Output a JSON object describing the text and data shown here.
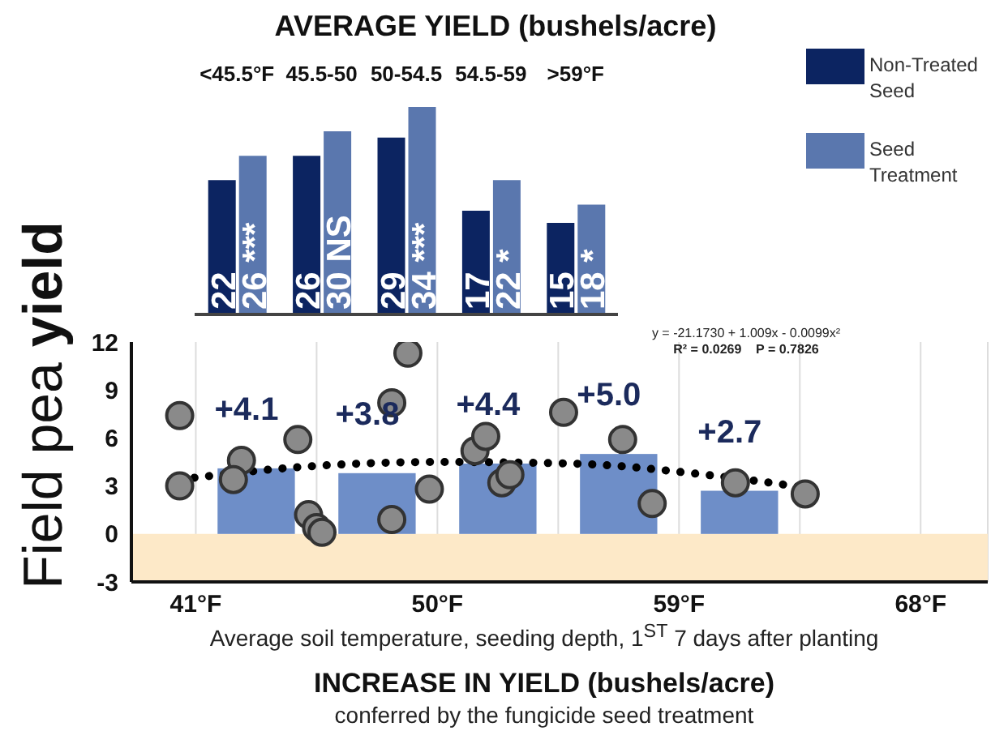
{
  "chart_data": [
    {
      "type": "bar",
      "title": "AVERAGE YIELD (bushels/acre)",
      "categories": [
        "<45.5°F",
        "45.5-50",
        "50-54.5",
        "54.5-59",
        ">59°F"
      ],
      "legend": "right",
      "series": [
        {
          "name": "Non-Treated Seed",
          "color": "#0c2461",
          "values": [
            22,
            26,
            29,
            17,
            15
          ],
          "value_labels": [
            "22",
            "26",
            "29",
            "17",
            "15"
          ]
        },
        {
          "name": "Seed Treatment",
          "color": "#5a77ae",
          "values": [
            26,
            30,
            34,
            22,
            18
          ],
          "value_labels": [
            "26 ***",
            "30 NS",
            "34 ***",
            "22 *",
            "18 *"
          ]
        }
      ]
    },
    {
      "type": "bar",
      "title": "INCREASE IN YIELD (bushels/acre)",
      "subtitle": "conferred by the fungicide seed treatment",
      "xlabel": "Average soil temperature, seeding depth, 1$^{ST}$ 7 days after planting",
      "ylabel": "Field pea yield",
      "xlim": [
        38.6,
        70.5
      ],
      "xticks": [
        {
          "value": 41,
          "label": "41°F"
        },
        {
          "value": 45.5,
          "label": null
        },
        {
          "value": 50,
          "label": "50°F"
        },
        {
          "value": 54.5,
          "label": null
        },
        {
          "value": 59,
          "label": "59°F"
        },
        {
          "value": 63.5,
          "label": null
        },
        {
          "value": 68,
          "label": "68°F"
        }
      ],
      "ylim": [
        -3,
        12
      ],
      "yticks": [
        -3,
        0,
        3,
        6,
        9,
        12
      ],
      "grid": "x",
      "bands": [
        {
          "axis": "y",
          "from": -3,
          "to": 0,
          "color": "#fde9c8"
        }
      ],
      "annotations": [
        "y = -21.1730 + 1.009x - 0.0099x²",
        "R² = 0.0269    P = 0.7826"
      ],
      "series": [
        {
          "color": "#6e8ec8",
          "x": [
            43.25,
            47.75,
            52.25,
            56.75,
            61.25
          ],
          "values": [
            4.1,
            3.8,
            4.4,
            5.0,
            2.7
          ],
          "value_labels": [
            "+4.1",
            "+3.8",
            "+4.4",
            "+5.0",
            "+2.7"
          ]
        },
        {
          "type": "scatter",
          "color": "#8a8a8a",
          "marker": "circle",
          "x": [
            40.4,
            40.4,
            42.7,
            42.4,
            44.8,
            45.2,
            45.5,
            45.7,
            48.3,
            48.9,
            48.3,
            49.7,
            51.4,
            51.8,
            52.4,
            52.7,
            54.7,
            56.9,
            58.0,
            61.1,
            63.7
          ],
          "values": [
            7.4,
            3.0,
            4.6,
            3.4,
            5.9,
            1.2,
            0.4,
            0.1,
            8.2,
            11.3,
            0.9,
            2.8,
            5.2,
            6.1,
            3.2,
            3.7,
            7.6,
            5.9,
            1.9,
            3.2,
            2.5
          ]
        },
        {
          "type": "line",
          "color": "#000000",
          "line_style": "dotted",
          "marker": "none",
          "x": [
            40.4,
            45,
            50,
            55,
            60,
            63.7
          ],
          "values": [
            3.4,
            4.2,
            4.5,
            4.4,
            3.7,
            2.9
          ]
        }
      ]
    }
  ]
}
